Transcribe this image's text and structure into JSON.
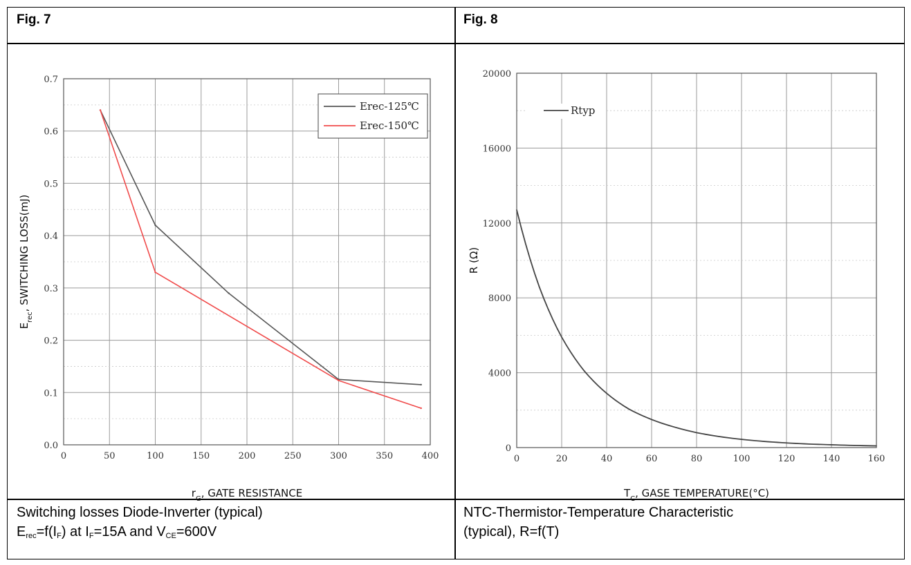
{
  "figures": [
    {
      "title": "Fig. 7",
      "caption_line1": "Switching losses Diode-Inverter (typical)",
      "caption_line2": {
        "p1": "E",
        "s1": "rec",
        "p2": "=f(I",
        "s2": "F",
        "p3": ") at I",
        "s3": "F",
        "p4": "=15A and V",
        "s4": "CE",
        "p5": "=600V"
      },
      "ylabel": {
        "main": "E",
        "sub": "rec",
        "rest": ", SWITCHING LOSS(mJ)"
      },
      "xlabel": {
        "main": "r",
        "sub": "G",
        "rest": ", GATE RESISTANCE"
      }
    },
    {
      "title": "Fig. 8",
      "caption_line1": "NTC-Thermistor-Temperature Characteristic",
      "caption_line2": "(typical), R=f(T)",
      "ylabel": {
        "main": "R (Ω)"
      },
      "xlabel": {
        "main": "T",
        "sub": "C",
        "rest": ", GASE TEMPERATURE(°C)"
      }
    }
  ],
  "chart_data": [
    {
      "type": "line",
      "title": "",
      "xlabel": "rG, GATE RESISTANCE",
      "ylabel": "Erec, SWITCHING LOSS(mJ)",
      "xlim": [
        0,
        400
      ],
      "ylim": [
        0,
        0.7
      ],
      "x_ticks": [
        "0",
        "50",
        "100",
        "150",
        "200",
        "250",
        "300",
        "350",
        "400"
      ],
      "y_ticks": [
        "0.0",
        "0.1",
        "0.2",
        "0.3",
        "0.4",
        "0.5",
        "0.6",
        "0.7"
      ],
      "grid": true,
      "legend_position": "top-right",
      "series": [
        {
          "name": "Erec-125℃",
          "color": "#555555",
          "x": [
            40,
            100,
            180,
            300,
            390
          ],
          "y": [
            0.64,
            0.42,
            0.29,
            0.125,
            0.115
          ]
        },
        {
          "name": "Erec-150℃",
          "color": "#f04a4a",
          "x": [
            40,
            100,
            300,
            390
          ],
          "y": [
            0.64,
            0.33,
            0.123,
            0.07
          ]
        }
      ]
    },
    {
      "type": "line",
      "title": "",
      "xlabel": "TC, GASE TEMPERATURE(°C)",
      "ylabel": "R (Ω)",
      "xlim": [
        0,
        160
      ],
      "ylim": [
        0,
        20000
      ],
      "x_ticks": [
        "0",
        "20",
        "40",
        "60",
        "80",
        "100",
        "120",
        "140",
        "160"
      ],
      "y_ticks": [
        "0",
        "4000",
        "8000",
        "12000",
        "16000",
        "20000"
      ],
      "grid": true,
      "legend_position": "top-left",
      "series": [
        {
          "name": "Rtyp",
          "color": "#444444",
          "x": [
            0,
            10,
            20,
            30,
            40,
            50,
            60,
            70,
            80,
            90,
            100,
            110,
            120,
            130,
            140,
            150,
            160
          ],
          "y": [
            12700,
            8600,
            5900,
            4100,
            2900,
            2050,
            1500,
            1100,
            800,
            590,
            440,
            330,
            250,
            190,
            150,
            115,
            90
          ]
        }
      ]
    }
  ]
}
